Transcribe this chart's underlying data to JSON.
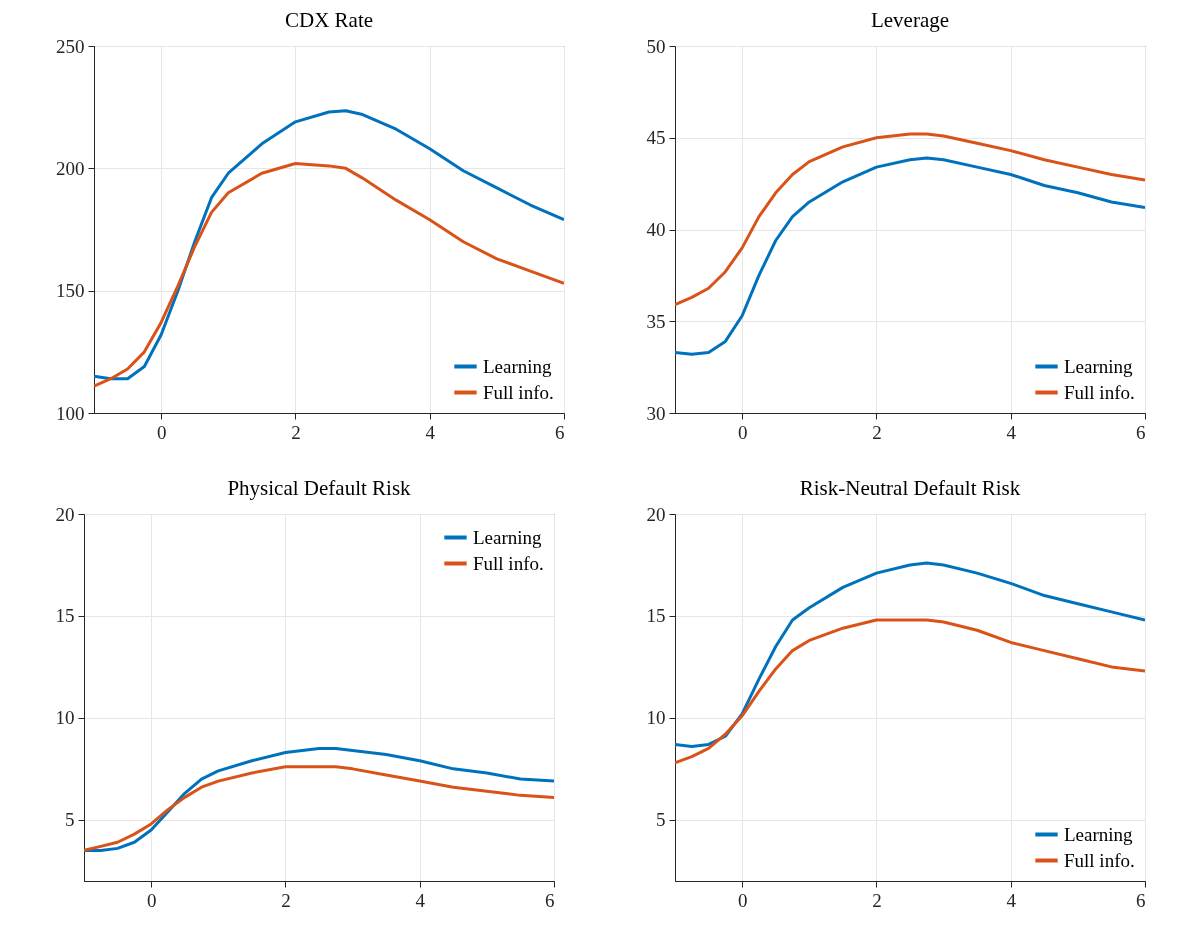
{
  "chart_data": [
    {
      "type": "line",
      "title": "CDX Rate",
      "x": [
        -1,
        -0.75,
        -0.5,
        -0.25,
        0,
        0.25,
        0.5,
        0.75,
        1,
        1.5,
        2,
        2.5,
        2.75,
        3,
        3.5,
        4,
        4.5,
        5,
        5.5,
        6
      ],
      "xlim": [
        -1,
        6
      ],
      "xticks": [
        0,
        2,
        4,
        6
      ],
      "ylim": [
        100,
        250
      ],
      "yticks": [
        100,
        150,
        200,
        250
      ],
      "grid": true,
      "legend": "bottom right",
      "series": [
        {
          "name": "Learning",
          "color": "#0072bd",
          "values": [
            115,
            114,
            114,
            119,
            132,
            150,
            170,
            188,
            198,
            210,
            219,
            223,
            223.5,
            222,
            216,
            208,
            199,
            192,
            185,
            179
          ]
        },
        {
          "name": "Full info.",
          "color": "#d95319",
          "values": [
            111,
            114,
            118,
            125,
            137,
            152,
            168,
            182,
            190,
            198,
            202,
            201,
            200,
            196,
            187,
            179,
            170,
            163,
            158,
            153
          ]
        }
      ]
    },
    {
      "type": "line",
      "title": "Leverage",
      "x": [
        -1,
        -0.75,
        -0.5,
        -0.25,
        0,
        0.25,
        0.5,
        0.75,
        1,
        1.5,
        2,
        2.5,
        2.75,
        3,
        3.5,
        4,
        4.5,
        5,
        5.5,
        6
      ],
      "xlim": [
        -1,
        6
      ],
      "xticks": [
        0,
        2,
        4,
        6
      ],
      "ylim": [
        30,
        50
      ],
      "yticks": [
        30,
        35,
        40,
        45,
        50
      ],
      "grid": true,
      "legend": "bottom right",
      "series": [
        {
          "name": "Learning",
          "color": "#0072bd",
          "values": [
            33.3,
            33.2,
            33.3,
            33.9,
            35.3,
            37.5,
            39.4,
            40.7,
            41.5,
            42.6,
            43.4,
            43.8,
            43.9,
            43.8,
            43.4,
            43.0,
            42.4,
            42.0,
            41.5,
            41.2
          ]
        },
        {
          "name": "Full info.",
          "color": "#d95319",
          "values": [
            35.9,
            36.3,
            36.8,
            37.7,
            39.0,
            40.7,
            42.0,
            43.0,
            43.7,
            44.5,
            45.0,
            45.2,
            45.2,
            45.1,
            44.7,
            44.3,
            43.8,
            43.4,
            43.0,
            42.7
          ]
        }
      ]
    },
    {
      "type": "line",
      "title": "Physical Default Risk",
      "x": [
        -1,
        -0.75,
        -0.5,
        -0.25,
        0,
        0.25,
        0.5,
        0.75,
        1,
        1.5,
        2,
        2.5,
        2.75,
        3,
        3.5,
        4,
        4.5,
        5,
        5.5,
        6
      ],
      "xlim": [
        -1,
        6
      ],
      "xticks": [
        0,
        2,
        4,
        6
      ],
      "ylim": [
        2,
        20
      ],
      "yticks": [
        5,
        10,
        15,
        20
      ],
      "grid": true,
      "legend": "top right",
      "series": [
        {
          "name": "Learning",
          "color": "#0072bd",
          "values": [
            3.5,
            3.5,
            3.6,
            3.9,
            4.5,
            5.4,
            6.3,
            7.0,
            7.4,
            7.9,
            8.3,
            8.5,
            8.5,
            8.4,
            8.2,
            7.9,
            7.5,
            7.3,
            7.0,
            6.9
          ]
        },
        {
          "name": "Full info.",
          "color": "#d95319",
          "values": [
            3.5,
            3.7,
            3.9,
            4.3,
            4.8,
            5.5,
            6.1,
            6.6,
            6.9,
            7.3,
            7.6,
            7.6,
            7.6,
            7.5,
            7.2,
            6.9,
            6.6,
            6.4,
            6.2,
            6.1
          ]
        }
      ]
    },
    {
      "type": "line",
      "title": "Risk-Neutral Default Risk",
      "x": [
        -1,
        -0.75,
        -0.5,
        -0.25,
        0,
        0.25,
        0.5,
        0.75,
        1,
        1.5,
        2,
        2.5,
        2.75,
        3,
        3.5,
        4,
        4.5,
        5,
        5.5,
        6
      ],
      "xlim": [
        -1,
        6
      ],
      "xticks": [
        0,
        2,
        4,
        6
      ],
      "ylim": [
        2,
        20
      ],
      "yticks": [
        5,
        10,
        15,
        20
      ],
      "grid": true,
      "legend": "bottom right",
      "series": [
        {
          "name": "Learning",
          "color": "#0072bd",
          "values": [
            8.7,
            8.6,
            8.7,
            9.1,
            10.2,
            11.9,
            13.5,
            14.8,
            15.4,
            16.4,
            17.1,
            17.5,
            17.6,
            17.5,
            17.1,
            16.6,
            16.0,
            15.6,
            15.2,
            14.8
          ]
        },
        {
          "name": "Full info.",
          "color": "#d95319",
          "values": [
            7.8,
            8.1,
            8.5,
            9.2,
            10.1,
            11.3,
            12.4,
            13.3,
            13.8,
            14.4,
            14.8,
            14.8,
            14.8,
            14.7,
            14.3,
            13.7,
            13.3,
            12.9,
            12.5,
            12.3
          ]
        }
      ]
    }
  ]
}
